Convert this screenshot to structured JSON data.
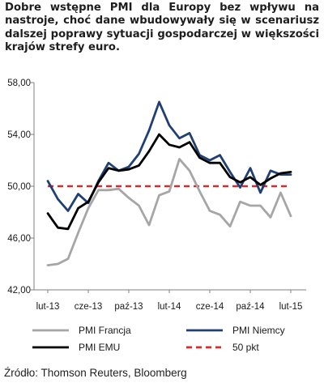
{
  "headline": "Dobre wstępne PMI dla Europy bez wpływu na nastroje, choć dane wbudowywały się w scenariusz dalszej poprawy sytuacji gospodarczej w większości krajów strefy euro.",
  "source": "Źródło: Thomson Reuters, Bloomberg",
  "chart_data": {
    "type": "line",
    "x_tick_labels": [
      "lut-13",
      "cze-13",
      "paź-13",
      "lut-14",
      "cze-14",
      "paź-14",
      "lut-15"
    ],
    "x_months": 25,
    "y_tick_labels": [
      "42,00",
      "46,00",
      "50,00",
      "54,00",
      "58,00"
    ],
    "ylim": [
      42,
      58
    ],
    "y_ticks": [
      42,
      46,
      50,
      54,
      58
    ],
    "grid": false,
    "legend_placement": "bottom",
    "series": [
      {
        "name": "PMI Francja",
        "color": "#a6a6a6",
        "values": [
          43.9,
          44.0,
          44.4,
          46.4,
          48.3,
          49.7,
          49.7,
          49.8,
          49.1,
          48.5,
          47.0,
          49.3,
          49.6,
          52.1,
          51.2,
          49.6,
          48.1,
          47.8,
          46.9,
          48.8,
          48.5,
          48.5,
          47.6,
          49.5,
          47.7
        ]
      },
      {
        "name": "PMI Niemcy",
        "color": "#1f3f75",
        "values": [
          50.4,
          49.0,
          48.1,
          49.4,
          48.7,
          50.4,
          51.8,
          51.2,
          51.5,
          52.5,
          54.3,
          56.5,
          54.7,
          53.7,
          54.1,
          52.4,
          52.0,
          52.4,
          51.1,
          49.9,
          51.4,
          49.5,
          51.2,
          50.9,
          50.9
        ]
      },
      {
        "name": "PMI EMU",
        "color": "#000000",
        "values": [
          47.9,
          46.8,
          46.7,
          48.3,
          48.8,
          50.3,
          51.4,
          51.2,
          51.3,
          51.6,
          52.7,
          54.0,
          53.2,
          53.0,
          53.4,
          52.2,
          51.8,
          51.8,
          50.7,
          50.3,
          50.7,
          50.1,
          50.6,
          51.0,
          51.1
        ]
      },
      {
        "name": "50 pkt",
        "color": "#d62b2b",
        "dashed": true,
        "values": [
          50,
          50,
          50,
          50,
          50,
          50,
          50,
          50,
          50,
          50,
          50,
          50,
          50,
          50,
          50,
          50,
          50,
          50,
          50,
          50,
          50,
          50,
          50,
          50,
          50
        ]
      }
    ]
  }
}
